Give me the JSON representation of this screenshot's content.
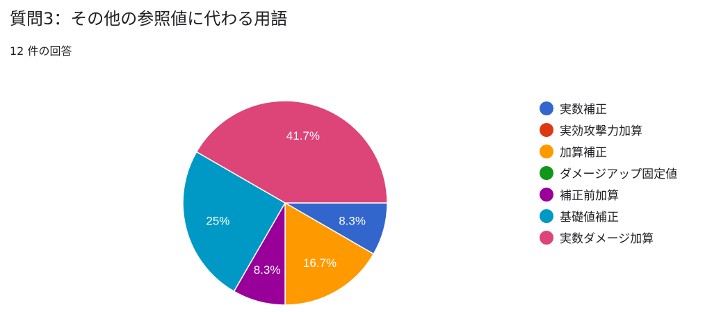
{
  "header": {
    "title": "質問3：その他の参照値に代わる用語",
    "response_count": "12 件の回答"
  },
  "chart_data": {
    "type": "pie",
    "title": "質問3：その他の参照値に代わる用語",
    "legend_position": "right",
    "start_angle": "3 o'clock, clockwise",
    "slices": [
      {
        "label": "実数補正",
        "value": 1,
        "percent_label": "8.3%",
        "color": "#3366cc"
      },
      {
        "label": "実効攻撃力加算",
        "value": 0,
        "percent_label": "",
        "color": "#dc3912"
      },
      {
        "label": "加算補正",
        "value": 2,
        "percent_label": "16.7%",
        "color": "#ff9900"
      },
      {
        "label": "ダメージアップ固定値",
        "value": 0,
        "percent_label": "",
        "color": "#109618"
      },
      {
        "label": "補正前加算",
        "value": 1,
        "percent_label": "8.3%",
        "color": "#990099"
      },
      {
        "label": "基礎値補正",
        "value": 3,
        "percent_label": "25%",
        "color": "#0099c6"
      },
      {
        "label": "実数ダメージ加算",
        "value": 5,
        "percent_label": "41.7%",
        "color": "#dd4477"
      }
    ]
  }
}
